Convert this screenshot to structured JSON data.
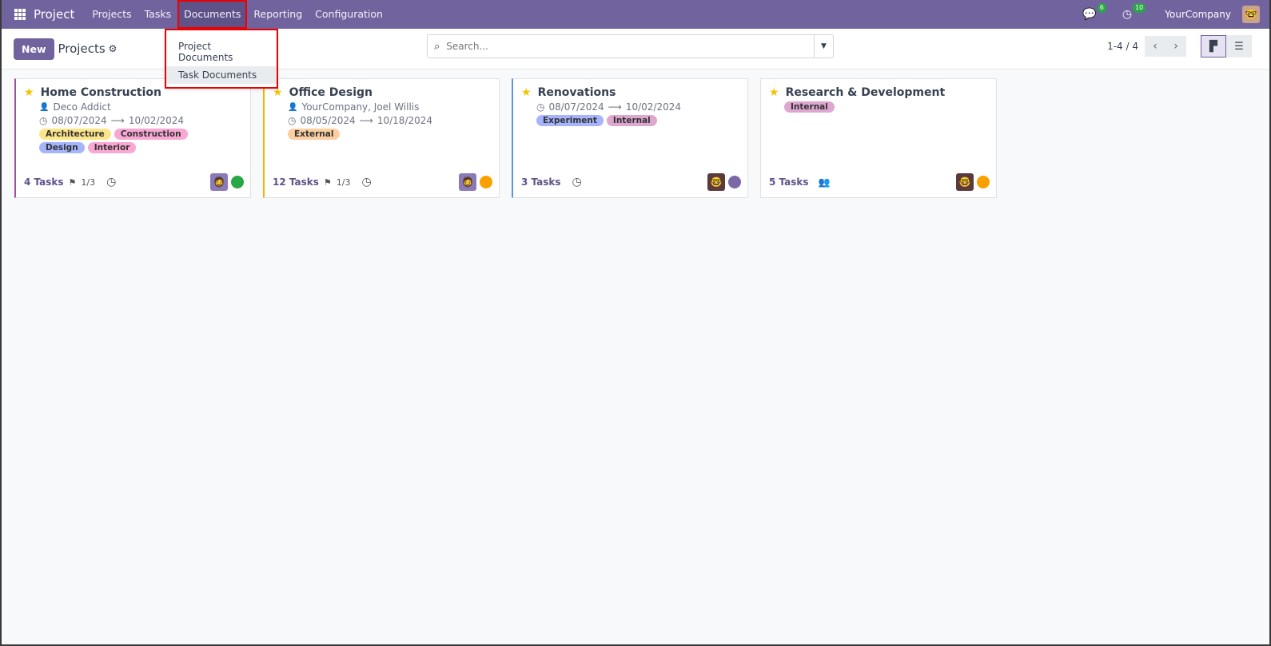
{
  "nav": {
    "app": "Project",
    "menus": [
      "Projects",
      "Tasks",
      "Documents",
      "Reporting",
      "Configuration"
    ],
    "active": "Documents",
    "messages_count": "6",
    "activities_count": "10",
    "company": "YourCompany"
  },
  "documents_menu": {
    "items": [
      "Project Documents",
      "Task Documents"
    ],
    "highlighted": "Task Documents"
  },
  "control": {
    "new_label": "New",
    "breadcrumb": "Projects",
    "search_placeholder": "Search...",
    "pager": "1-4 / 4",
    "view": "kanban"
  },
  "cards": [
    {
      "name": "Home Construction",
      "customer": "Deco Addict",
      "start": "08/07/2024",
      "end": "10/02/2024",
      "tags": [
        {
          "label": "Architecture",
          "color": "#fde68a"
        },
        {
          "label": "Construction",
          "color": "#f9a8d4"
        },
        {
          "label": "Design",
          "color": "#a5b4fc"
        },
        {
          "label": "Interior",
          "color": "#f9a8d4"
        }
      ],
      "tasks": "4 Tasks",
      "milestones": "1/3",
      "status_color": "#28a745",
      "border": "#a0509b",
      "avatar": "manager"
    },
    {
      "name": "Office Design",
      "customer": "YourCompany, Joel Willis",
      "start": "08/05/2024",
      "end": "10/18/2024",
      "tags": [
        {
          "label": "External",
          "color": "#fbcfa0"
        }
      ],
      "tasks": "12 Tasks",
      "milestones": "1/3",
      "status_color": "#f8a100",
      "border": "#f0b400",
      "avatar": "manager"
    },
    {
      "name": "Renovations",
      "customer": "",
      "start": "08/07/2024",
      "end": "10/02/2024",
      "tags": [
        {
          "label": "Experiment",
          "color": "#a5b4fc"
        },
        {
          "label": "Internal",
          "color": "#dda7cf"
        }
      ],
      "tasks": "3 Tasks",
      "milestones": "",
      "status_color": "#7b68a6",
      "border": "#5f94e0",
      "avatar": "admin"
    },
    {
      "name": "Research & Development",
      "customer": "",
      "start": "",
      "end": "",
      "tags": [
        {
          "label": "Internal",
          "color": "#dda7cf"
        }
      ],
      "tasks": "5 Tasks",
      "milestones": "",
      "status_color": "#f8a100",
      "border": "",
      "avatar": "admin",
      "followers_icon": true
    }
  ]
}
